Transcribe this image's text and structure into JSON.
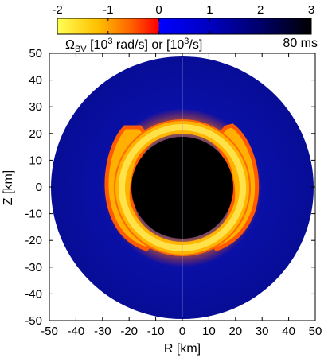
{
  "chart_data": {
    "type": "heatmap",
    "title": "",
    "xlabel": "R [km]",
    "ylabel": "Z [km]",
    "xlim": [
      -50,
      50
    ],
    "ylim": [
      -50,
      50
    ],
    "x_ticks": [
      "-50",
      "-40",
      "-30",
      "-20",
      "-10",
      "0",
      "10",
      "20",
      "30",
      "40",
      "50"
    ],
    "y_ticks": [
      "50",
      "40",
      "30",
      "20",
      "10",
      "0",
      "-10",
      "-20",
      "-30",
      "-40",
      "-50"
    ],
    "time_label": "80 ms",
    "colorbar": {
      "label_main": "Ω",
      "label_sub": "BV",
      "label_rest": " [10",
      "label_exp": "3",
      "label_unit": " rad/s] or  [10",
      "label_exp2": "3",
      "label_end": "/s]",
      "range": [
        -2,
        3
      ],
      "ticks": [
        "-2",
        "-1",
        "0",
        "1",
        "2",
        "3"
      ],
      "stops": [
        {
          "value": -2,
          "color": "#ffff55"
        },
        {
          "value": -1.2,
          "color": "#ffc000"
        },
        {
          "value": -0.6,
          "color": "#ff6a00"
        },
        {
          "value": -0.05,
          "color": "#ff0000"
        },
        {
          "value": 0.05,
          "color": "#0000ff"
        },
        {
          "value": 1,
          "color": "#0000c0"
        },
        {
          "value": 2,
          "color": "#00006a"
        },
        {
          "value": 3,
          "color": "#000000"
        }
      ]
    },
    "regions": [
      {
        "name": "outer disk",
        "radius_km": 50,
        "color": "#0a10a8"
      },
      {
        "name": "central core",
        "radius_km": 19,
        "color": "#000000"
      },
      {
        "name": "convective shell",
        "inner_km": 18,
        "outer_km": 26,
        "color": "#ffd400"
      }
    ]
  }
}
